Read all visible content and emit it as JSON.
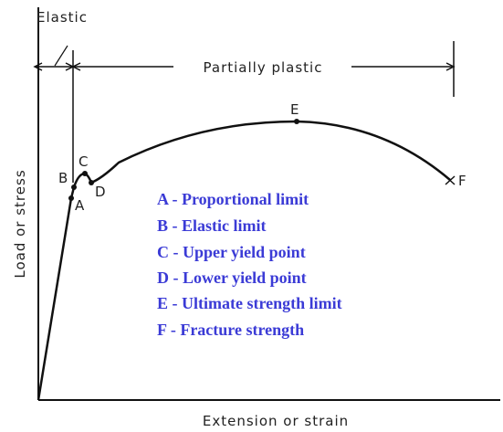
{
  "header": {
    "elastic": "Elastic",
    "partially_plastic": "Partially plastic"
  },
  "axes": {
    "y": "Load or stress",
    "x": "Extension or strain"
  },
  "points": [
    "A",
    "B",
    "C",
    "D",
    "E",
    "F"
  ],
  "legend": [
    "A -  Proportional limit",
    "B - Elastic limit",
    "C - Upper yield point",
    "D - Lower yield point",
    "E - Ultimate strength limit",
    "F -  Fracture strength"
  ]
}
